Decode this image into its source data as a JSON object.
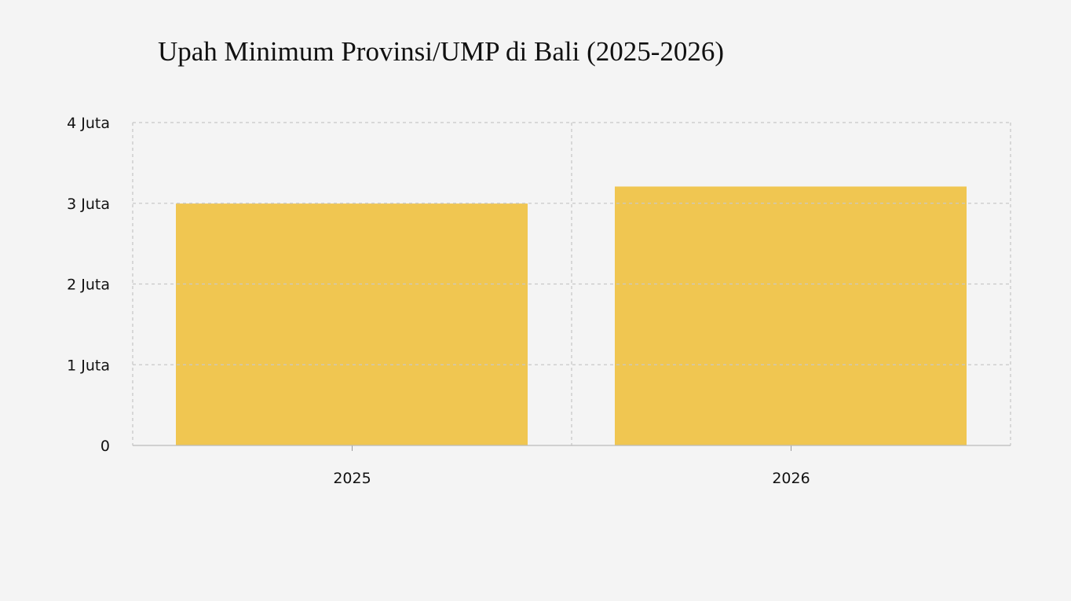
{
  "chart_data": {
    "type": "bar",
    "title": "Upah Minimum Provinsi/UMP di Bali (2025-2026)",
    "categories": [
      "2025",
      "2026"
    ],
    "values": [
      2996561,
      3207459
    ],
    "xlabel": "",
    "ylabel": "",
    "ylim": [
      0,
      4000000
    ],
    "yticks": [
      {
        "value": 0,
        "label": "0"
      },
      {
        "value": 1000000,
        "label": "1 Juta"
      },
      {
        "value": 2000000,
        "label": "2 Juta"
      },
      {
        "value": 3000000,
        "label": "3 Juta"
      },
      {
        "value": 4000000,
        "label": "4 Juta"
      }
    ],
    "grid": true,
    "bar_color": "#f0c651"
  }
}
